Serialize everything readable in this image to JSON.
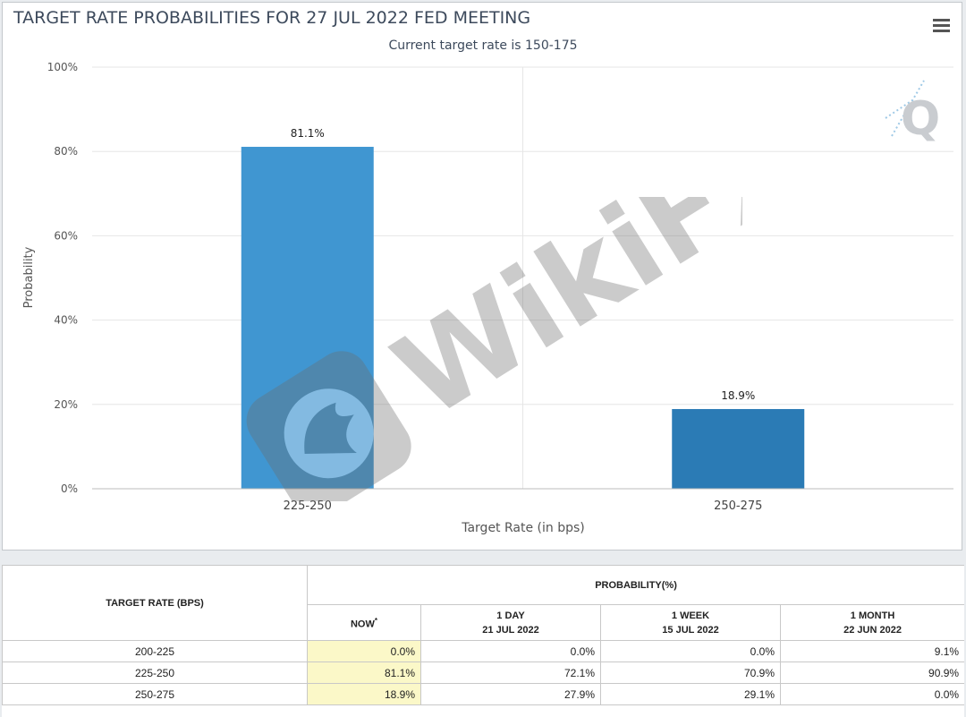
{
  "title": "TARGET RATE PROBABILITIES FOR 27 JUL 2022 FED MEETING",
  "subtitle": "Current target rate is 150-175",
  "watermark_text": "WikiFX",
  "logo_letter": "Q",
  "icons": {
    "menu": "hamburger-menu-icon",
    "logo": "q-logo-icon",
    "watermark": "eagle-shield-icon"
  },
  "colors": {
    "bar_primary": "#4096d1",
    "bar_secondary": "#2b7bb5",
    "now_highlight": "#fbf8c8"
  },
  "chart_data": {
    "type": "bar",
    "title": "TARGET RATE PROBABILITIES FOR 27 JUL 2022 FED MEETING",
    "subtitle": "Current target rate is 150-175",
    "xlabel": "Target Rate (in bps)",
    "ylabel": "Probability",
    "categories": [
      "225-250",
      "250-275"
    ],
    "values": [
      81.1,
      18.9
    ],
    "data_labels": [
      "81.1%",
      "18.9%"
    ],
    "ylim": [
      0,
      100
    ],
    "yticks": [
      0,
      20,
      40,
      60,
      80,
      100
    ],
    "ytick_labels": [
      "0%",
      "20%",
      "40%",
      "60%",
      "80%",
      "100%"
    ],
    "bar_colors": [
      "#4096d1",
      "#2b7bb5"
    ],
    "grid": true
  },
  "table": {
    "target_rate_header": "TARGET RATE (BPS)",
    "probability_header": "PROBABILITY(%)",
    "columns": [
      {
        "line1": "NOW",
        "line2": "",
        "mark": "*"
      },
      {
        "line1": "1 DAY",
        "line2": "21 JUL 2022",
        "mark": ""
      },
      {
        "line1": "1 WEEK",
        "line2": "15 JUL 2022",
        "mark": ""
      },
      {
        "line1": "1 MONTH",
        "line2": "22 JUN 2022",
        "mark": ""
      }
    ],
    "rows": [
      {
        "rate": "200-225",
        "values": [
          "0.0%",
          "0.0%",
          "0.0%",
          "9.1%"
        ]
      },
      {
        "rate": "225-250",
        "values": [
          "81.1%",
          "72.1%",
          "70.9%",
          "90.9%"
        ]
      },
      {
        "rate": "250-275",
        "values": [
          "18.9%",
          "27.9%",
          "29.1%",
          "0.0%"
        ]
      }
    ]
  }
}
